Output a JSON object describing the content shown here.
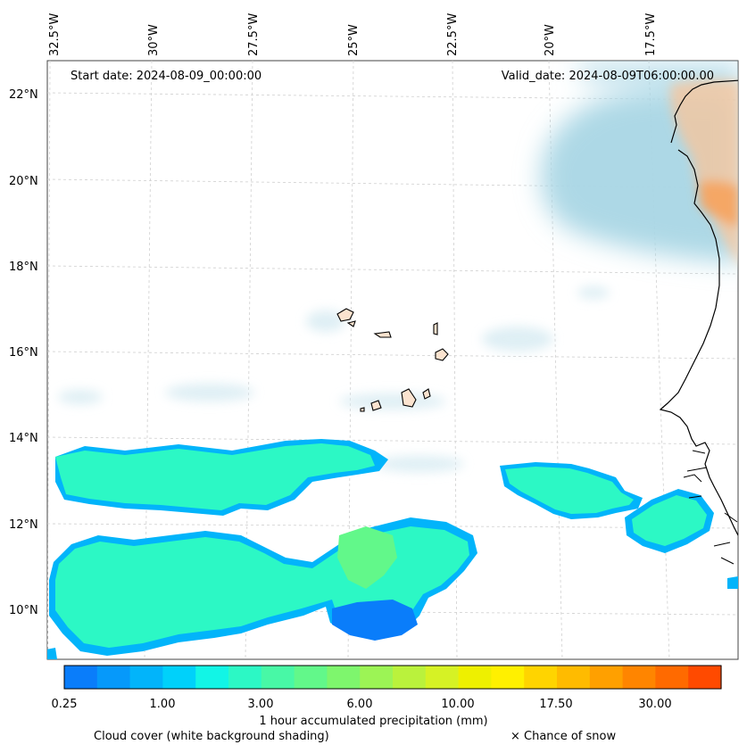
{
  "header": {
    "start_date": "Start date: 2024-08-09_00:00:00",
    "valid_date": "Valid_date: 2024-08-09T06:00:00.00"
  },
  "axes": {
    "longitude_labels": [
      "32.5°W",
      "30°W",
      "27.5°W",
      "25°W",
      "22.5°W",
      "20°W",
      "17.5°W"
    ],
    "latitude_labels": [
      "22°N",
      "20°N",
      "18°N",
      "16°N",
      "14°N",
      "12°N",
      "10°N"
    ],
    "gridlines": true
  },
  "colorbar": {
    "title": "1 hour accumulated precipitation (mm)",
    "tick_labels": [
      "0.25",
      "1.00",
      "3.00",
      "6.00",
      "10.00",
      "17.50",
      "30.00"
    ],
    "colors": [
      "#0a7dfa",
      "#0699fa",
      "#02b4fa",
      "#00d1fa",
      "#12f5e6",
      "#2cf8c5",
      "#48f8a6",
      "#62f88a",
      "#7ef66d",
      "#9cf455",
      "#baf23c",
      "#d6f225",
      "#eef000",
      "#fff000",
      "#ffd400",
      "#ffbb00",
      "#ffa000",
      "#ff8500",
      "#ff6a00",
      "#ff4a00"
    ]
  },
  "legend": {
    "cloud_cover": "Cloud cover (white background shading)",
    "snow": "× Chance of snow"
  },
  "colors": {
    "cloud": "#a9d6e5",
    "dust": "#f5a462",
    "coast": "#000000",
    "island_fill": "#fbe3cf"
  }
}
